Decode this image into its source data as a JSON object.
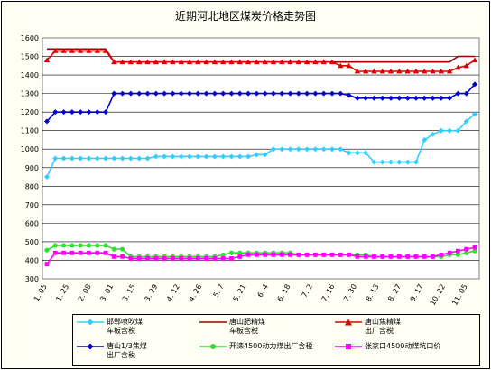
{
  "chart_data": {
    "type": "line",
    "title": "近期河北地区煤炭价格走势图",
    "xlabel": "",
    "ylabel": "",
    "ylim": [
      300,
      1600
    ],
    "yticks": [
      300,
      400,
      500,
      600,
      700,
      800,
      900,
      1000,
      1100,
      1200,
      1300,
      1400,
      1500,
      1600
    ],
    "xticks": [
      "1. 05",
      "1. 25",
      "2. 08",
      "3. 01",
      "3. 15",
      "3. 29",
      "4. 12",
      "4. 26",
      "5. 7",
      "5. 21",
      "6. 4",
      "6. 18",
      "7. 2",
      "7. 16",
      "7. 30",
      "8. 13",
      "8. 27",
      "9. 17",
      "10. 22",
      "11. 05"
    ],
    "grid": true,
    "legend_position": "bottom",
    "series": [
      {
        "name": "邯郸喷吹煤\n车板含税",
        "color": "#33ccff",
        "marker": "diamond",
        "values": [
          850,
          950,
          950,
          950,
          950,
          950,
          950,
          950,
          950,
          950,
          950,
          950,
          950,
          960,
          960,
          960,
          960,
          960,
          960,
          960,
          960,
          960,
          960,
          960,
          960,
          970,
          970,
          1000,
          1000,
          1000,
          1000,
          1000,
          1000,
          1000,
          1000,
          1000,
          980,
          980,
          980,
          930,
          930,
          930,
          930,
          930,
          930,
          1050,
          1080,
          1100,
          1100,
          1100,
          1150,
          1190
        ]
      },
      {
        "name": "唐山肥精煤\n车板含税",
        "color": "#990000",
        "marker": "none",
        "values": [
          1540,
          1540,
          1540,
          1540,
          1540,
          1540,
          1540,
          1540,
          1470,
          1470,
          1470,
          1470,
          1470,
          1470,
          1470,
          1470,
          1470,
          1470,
          1470,
          1470,
          1470,
          1470,
          1470,
          1470,
          1470,
          1470,
          1470,
          1470,
          1470,
          1470,
          1470,
          1470,
          1470,
          1470,
          1470,
          1470,
          1470,
          1470,
          1470,
          1470,
          1470,
          1470,
          1470,
          1470,
          1470,
          1470,
          1470,
          1470,
          1470,
          1500,
          1500,
          1500
        ]
      },
      {
        "name": "唐山焦精煤\n出厂含税",
        "color": "#dd0000",
        "marker": "triangle",
        "values": [
          1480,
          1530,
          1530,
          1530,
          1530,
          1530,
          1530,
          1530,
          1470,
          1470,
          1470,
          1470,
          1470,
          1470,
          1470,
          1470,
          1470,
          1470,
          1470,
          1470,
          1470,
          1470,
          1470,
          1470,
          1470,
          1470,
          1470,
          1470,
          1470,
          1470,
          1470,
          1470,
          1470,
          1470,
          1470,
          1450,
          1450,
          1420,
          1420,
          1420,
          1420,
          1420,
          1420,
          1420,
          1420,
          1420,
          1420,
          1420,
          1420,
          1440,
          1450,
          1480
        ]
      },
      {
        "name": "唐山1/3焦煤\n出厂含税",
        "color": "#0000cc",
        "marker": "diamond",
        "values": [
          1150,
          1200,
          1200,
          1200,
          1200,
          1200,
          1200,
          1200,
          1300,
          1300,
          1300,
          1300,
          1300,
          1300,
          1300,
          1300,
          1300,
          1300,
          1300,
          1300,
          1300,
          1300,
          1300,
          1300,
          1300,
          1300,
          1300,
          1300,
          1300,
          1300,
          1300,
          1300,
          1300,
          1300,
          1300,
          1300,
          1290,
          1275,
          1275,
          1275,
          1275,
          1275,
          1275,
          1275,
          1275,
          1275,
          1275,
          1275,
          1275,
          1300,
          1300,
          1350
        ]
      },
      {
        "name": "开滦4500动力煤出厂含税",
        "color": "#33dd33",
        "marker": "circle",
        "values": [
          455,
          480,
          480,
          480,
          480,
          480,
          480,
          480,
          460,
          460,
          420,
          420,
          420,
          420,
          420,
          420,
          420,
          420,
          420,
          420,
          420,
          430,
          440,
          440,
          440,
          440,
          440,
          440,
          440,
          440,
          430,
          430,
          430,
          430,
          430,
          430,
          430,
          430,
          430,
          420,
          420,
          420,
          420,
          420,
          420,
          420,
          420,
          420,
          430,
          430,
          440,
          450
        ]
      },
      {
        "name": "张家口4500动煤坑口价",
        "color": "#ff00ff",
        "marker": "square",
        "values": [
          380,
          440,
          440,
          440,
          440,
          440,
          440,
          440,
          420,
          420,
          410,
          410,
          410,
          410,
          410,
          410,
          410,
          410,
          410,
          410,
          410,
          410,
          410,
          420,
          430,
          430,
          430,
          430,
          430,
          430,
          430,
          430,
          430,
          430,
          430,
          430,
          430,
          420,
          420,
          420,
          420,
          420,
          420,
          420,
          420,
          420,
          420,
          430,
          440,
          450,
          460,
          470
        ]
      }
    ]
  }
}
